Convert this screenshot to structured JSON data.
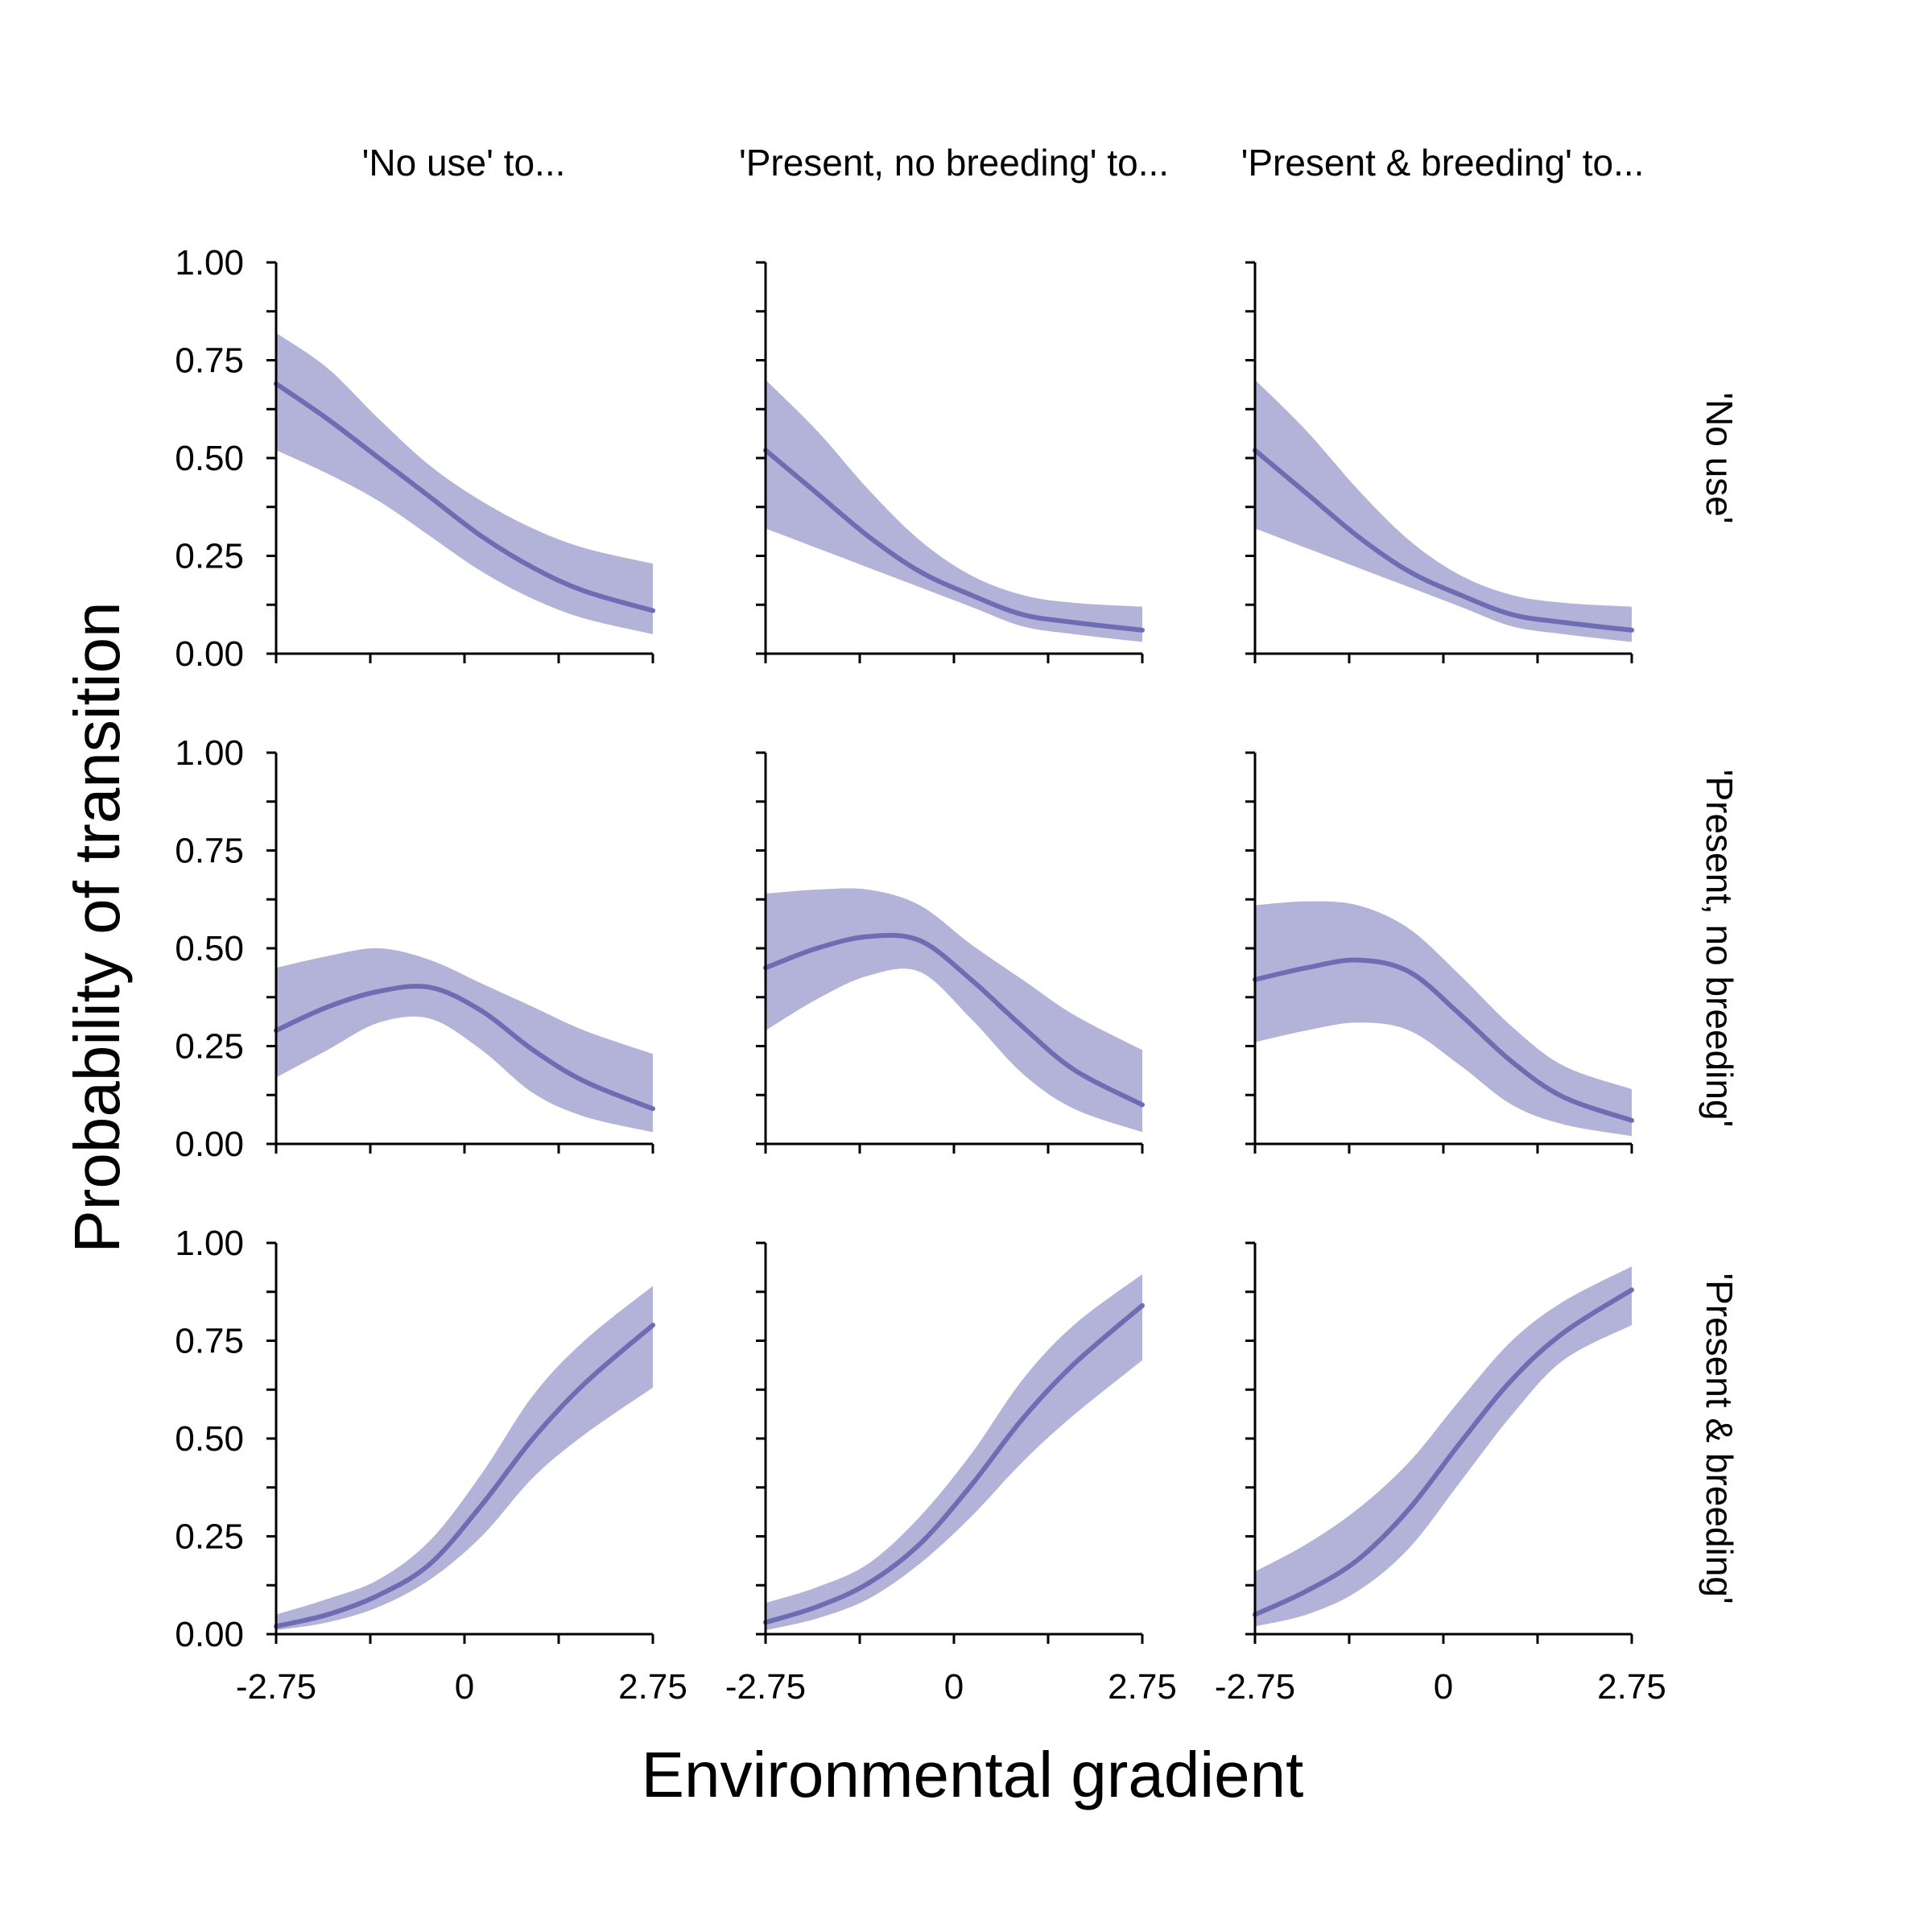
{
  "figure": {
    "xlabel": "Environmental gradient",
    "ylabel": "Probability of transition",
    "colors": {
      "band": "#b3b2d8",
      "line": "#6f6cb3"
    },
    "col_titles": [
      "'No use' to...",
      "'Present, no breeding' to...",
      "'Present & breeding' to..."
    ],
    "row_titles": [
      "'No use'",
      "'Present, no breeding'",
      "'Present & breeding'"
    ],
    "x_ticks": [
      {
        "value": -2.75,
        "label": "-2.75"
      },
      {
        "value": 0,
        "label": "0"
      },
      {
        "value": 2.75,
        "label": "2.75"
      }
    ],
    "x_minor_ticks": [
      -2.75,
      -1.375,
      0,
      1.375,
      2.75
    ],
    "y_ticks": [
      {
        "value": 0,
        "label": "0.00"
      },
      {
        "value": 0.25,
        "label": "0.25"
      },
      {
        "value": 0.5,
        "label": "0.50"
      },
      {
        "value": 0.75,
        "label": "0.75"
      },
      {
        "value": 1,
        "label": "1.00"
      }
    ],
    "y_minor_ticks": [
      0,
      0.125,
      0.25,
      0.375,
      0.5,
      0.625,
      0.75,
      0.875,
      1
    ]
  },
  "chart_data": {
    "type": "line",
    "xlim": [
      -2.75,
      2.75
    ],
    "ylim": [
      0,
      1
    ],
    "x": [
      -2.75,
      -2.0,
      -1.25,
      -0.5,
      0.25,
      1.0,
      1.75,
      2.75
    ],
    "grid": false,
    "panels": [
      {
        "row": 0,
        "col": 0,
        "mean": [
          0.69,
          0.6,
          0.5,
          0.4,
          0.3,
          0.22,
          0.16,
          0.11
        ],
        "lower": [
          0.52,
          0.46,
          0.39,
          0.3,
          0.21,
          0.14,
          0.09,
          0.05
        ],
        "upper": [
          0.82,
          0.73,
          0.6,
          0.48,
          0.39,
          0.32,
          0.27,
          0.23
        ]
      },
      {
        "row": 0,
        "col": 1,
        "mean": [
          0.52,
          0.41,
          0.3,
          0.21,
          0.15,
          0.1,
          0.08,
          0.06
        ],
        "lower": [
          0.32,
          0.27,
          0.22,
          0.17,
          0.12,
          0.07,
          0.05,
          0.03
        ],
        "upper": [
          0.7,
          0.57,
          0.42,
          0.29,
          0.2,
          0.15,
          0.13,
          0.12
        ]
      },
      {
        "row": 0,
        "col": 2,
        "mean": [
          0.52,
          0.41,
          0.3,
          0.21,
          0.15,
          0.1,
          0.08,
          0.06
        ],
        "lower": [
          0.32,
          0.27,
          0.22,
          0.17,
          0.12,
          0.07,
          0.05,
          0.03
        ],
        "upper": [
          0.7,
          0.57,
          0.42,
          0.29,
          0.2,
          0.15,
          0.13,
          0.12
        ]
      },
      {
        "row": 1,
        "col": 0,
        "mean": [
          0.29,
          0.35,
          0.39,
          0.4,
          0.34,
          0.24,
          0.16,
          0.09
        ],
        "lower": [
          0.17,
          0.24,
          0.31,
          0.32,
          0.24,
          0.13,
          0.07,
          0.03
        ],
        "upper": [
          0.45,
          0.48,
          0.5,
          0.47,
          0.41,
          0.35,
          0.29,
          0.23
        ]
      },
      {
        "row": 1,
        "col": 1,
        "mean": [
          0.45,
          0.5,
          0.53,
          0.52,
          0.42,
          0.3,
          0.19,
          0.1
        ],
        "lower": [
          0.29,
          0.37,
          0.43,
          0.44,
          0.32,
          0.18,
          0.09,
          0.03
        ],
        "upper": [
          0.64,
          0.65,
          0.65,
          0.61,
          0.51,
          0.42,
          0.33,
          0.24
        ]
      },
      {
        "row": 1,
        "col": 2,
        "mean": [
          0.42,
          0.45,
          0.47,
          0.44,
          0.33,
          0.21,
          0.12,
          0.06
        ],
        "lower": [
          0.26,
          0.29,
          0.31,
          0.29,
          0.2,
          0.1,
          0.05,
          0.02
        ],
        "upper": [
          0.61,
          0.62,
          0.61,
          0.55,
          0.43,
          0.3,
          0.2,
          0.14
        ]
      },
      {
        "row": 2,
        "col": 0,
        "mean": [
          0.02,
          0.05,
          0.1,
          0.18,
          0.33,
          0.5,
          0.64,
          0.79
        ],
        "lower": [
          0.01,
          0.03,
          0.07,
          0.14,
          0.25,
          0.4,
          0.51,
          0.63
        ],
        "upper": [
          0.05,
          0.09,
          0.14,
          0.24,
          0.41,
          0.61,
          0.75,
          0.89
        ]
      },
      {
        "row": 2,
        "col": 1,
        "mean": [
          0.03,
          0.07,
          0.13,
          0.23,
          0.38,
          0.55,
          0.69,
          0.84
        ],
        "lower": [
          0.01,
          0.04,
          0.09,
          0.18,
          0.3,
          0.44,
          0.56,
          0.7
        ],
        "upper": [
          0.08,
          0.12,
          0.18,
          0.3,
          0.46,
          0.65,
          0.79,
          0.92
        ]
      },
      {
        "row": 2,
        "col": 2,
        "mean": [
          0.05,
          0.11,
          0.19,
          0.32,
          0.49,
          0.65,
          0.77,
          0.88
        ],
        "lower": [
          0.02,
          0.05,
          0.11,
          0.22,
          0.39,
          0.56,
          0.7,
          0.79
        ],
        "upper": [
          0.16,
          0.23,
          0.32,
          0.44,
          0.6,
          0.75,
          0.85,
          0.94
        ]
      }
    ]
  }
}
